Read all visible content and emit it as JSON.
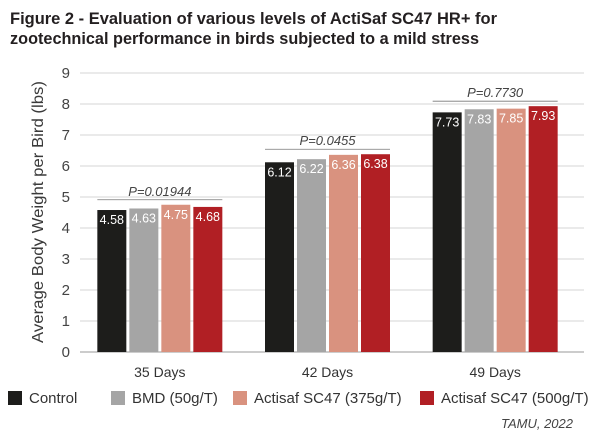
{
  "chart_data": {
    "type": "bar",
    "title_lines": [
      "Figure 2 - Evaluation of various levels of ActiSaf SC47 HR+ for",
      "zootechnical performance in birds subjected to a mild stress"
    ],
    "ylabel": "Average Body Weight per Bird (lbs)",
    "ylim": [
      0,
      9
    ],
    "yticks": [
      0,
      1,
      2,
      3,
      4,
      5,
      6,
      7,
      8,
      9
    ],
    "grid": true,
    "legend_position": "bottom",
    "categories": [
      "35 Days",
      "42 Days",
      "49 Days"
    ],
    "series": [
      {
        "name": "Control",
        "color": "#1d1d1b",
        "values": [
          4.58,
          6.12,
          7.73
        ]
      },
      {
        "name": "BMD (50g/T)",
        "color": "#a5a5a5",
        "values": [
          4.63,
          6.22,
          7.83
        ]
      },
      {
        "name": "Actisaf SC47 (375g/T)",
        "color": "#d9927f",
        "values": [
          4.75,
          6.36,
          7.85
        ]
      },
      {
        "name": "Actisaf SC47 (500g/T)",
        "color": "#b11f24",
        "values": [
          4.68,
          6.38,
          7.93
        ]
      }
    ],
    "annotations": [
      "P=0.01944",
      "P=0.0455",
      "P=0.7730"
    ],
    "source": "TAMU, 2022"
  }
}
